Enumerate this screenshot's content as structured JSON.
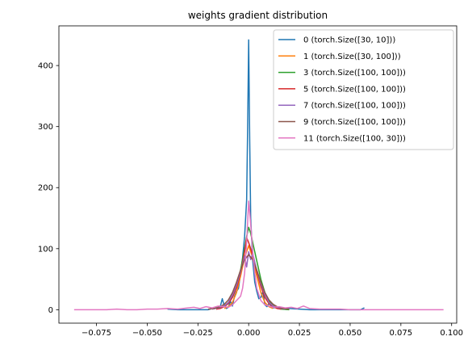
{
  "chart_data": {
    "type": "line",
    "title": "weights gradient distribution",
    "xlabel": "",
    "ylabel": "",
    "xlim": [
      -0.0935,
      0.1025
    ],
    "ylim": [
      -22,
      465
    ],
    "xticks": [
      -0.075,
      -0.05,
      -0.025,
      0.0,
      0.025,
      0.05,
      0.075,
      0.1
    ],
    "xtick_labels": [
      "−0.075",
      "−0.050",
      "−0.025",
      "0.000",
      "0.025",
      "0.050",
      "0.075",
      "0.100"
    ],
    "yticks": [
      0,
      100,
      200,
      300,
      400
    ],
    "ytick_labels": [
      "0",
      "100",
      "200",
      "300",
      "400"
    ],
    "grid": false,
    "legend_position": "top-right",
    "series": [
      {
        "name": "0 (torch.Size([30, 10]))",
        "color": "#1f77b4",
        "x": [
          -0.04,
          -0.035,
          -0.03,
          -0.025,
          -0.02,
          -0.018,
          -0.016,
          -0.014,
          -0.013,
          -0.012,
          -0.011,
          -0.01,
          -0.009,
          -0.008,
          -0.007,
          -0.006,
          -0.005,
          -0.004,
          -0.003,
          -0.002,
          -0.001,
          -0.0005,
          0.0,
          0.0005,
          0.001,
          0.002,
          0.003,
          0.004,
          0.005,
          0.006,
          0.007,
          0.008,
          0.009,
          0.01,
          0.012,
          0.014,
          0.016,
          0.02,
          0.025,
          0.03,
          0.035,
          0.04,
          0.045,
          0.05,
          0.055,
          0.057
        ],
        "y": [
          1,
          0,
          0,
          0,
          0,
          2,
          3,
          5,
          18,
          6,
          2,
          4,
          14,
          6,
          22,
          30,
          35,
          60,
          85,
          120,
          180,
          300,
          442,
          280,
          150,
          80,
          45,
          30,
          18,
          20,
          30,
          8,
          5,
          10,
          3,
          4,
          2,
          2,
          1,
          0,
          0,
          0,
          0,
          0,
          0,
          3
        ]
      },
      {
        "name": "1 (torch.Size([30, 100]))",
        "color": "#ff7f0e",
        "x": [
          -0.012,
          -0.01,
          -0.008,
          -0.006,
          -0.004,
          -0.002,
          0.0,
          0.002,
          0.004,
          0.006,
          0.008,
          0.01,
          0.012
        ],
        "y": [
          2,
          5,
          12,
          28,
          55,
          85,
          105,
          85,
          55,
          28,
          12,
          5,
          2
        ]
      },
      {
        "name": "3 (torch.Size([100, 100]))",
        "color": "#2ca02c",
        "x": [
          -0.016,
          -0.014,
          -0.012,
          -0.01,
          -0.008,
          -0.006,
          -0.004,
          -0.002,
          -0.001,
          0.0,
          0.001,
          0.002,
          0.004,
          0.006,
          0.008,
          0.01,
          0.012,
          0.014,
          0.016,
          0.02
        ],
        "y": [
          1,
          3,
          6,
          12,
          22,
          40,
          65,
          100,
          120,
          135,
          125,
          110,
          80,
          50,
          28,
          14,
          7,
          3,
          1,
          0
        ]
      },
      {
        "name": "5 (torch.Size([100, 100]))",
        "color": "#d62728",
        "x": [
          -0.016,
          -0.014,
          -0.012,
          -0.01,
          -0.008,
          -0.006,
          -0.004,
          -0.002,
          -0.001,
          0.0,
          0.001,
          0.002,
          0.004,
          0.006,
          0.008,
          0.01,
          0.012,
          0.014,
          0.016
        ],
        "y": [
          1,
          2,
          5,
          10,
          20,
          36,
          60,
          95,
          118,
          110,
          100,
          88,
          62,
          38,
          20,
          10,
          5,
          2,
          1
        ]
      },
      {
        "name": "7 (torch.Size([100, 100]))",
        "color": "#9467bd",
        "x": [
          -0.018,
          -0.015,
          -0.012,
          -0.01,
          -0.008,
          -0.006,
          -0.004,
          -0.003,
          -0.002,
          -0.001,
          0.0,
          0.001,
          0.002,
          0.003,
          0.004,
          0.006,
          0.008,
          0.01,
          0.012,
          0.015,
          0.018
        ],
        "y": [
          1,
          3,
          6,
          12,
          24,
          40,
          62,
          75,
          88,
          70,
          95,
          82,
          92,
          78,
          65,
          42,
          25,
          12,
          6,
          3,
          1
        ]
      },
      {
        "name": "9 (torch.Size([100, 100]))",
        "color": "#8c564b",
        "x": [
          -0.02,
          -0.017,
          -0.014,
          -0.012,
          -0.01,
          -0.008,
          -0.006,
          -0.004,
          -0.002,
          0.0,
          0.002,
          0.004,
          0.006,
          0.008,
          0.01,
          0.012,
          0.014,
          0.017,
          0.02
        ],
        "y": [
          1,
          2,
          5,
          9,
          16,
          28,
          45,
          65,
          82,
          90,
          82,
          65,
          45,
          28,
          16,
          9,
          5,
          2,
          1
        ]
      },
      {
        "name": "11 (torch.Size([100, 30]))",
        "color": "#e377c2",
        "x": [
          -0.086,
          -0.08,
          -0.075,
          -0.07,
          -0.065,
          -0.06,
          -0.055,
          -0.05,
          -0.045,
          -0.04,
          -0.035,
          -0.03,
          -0.027,
          -0.024,
          -0.021,
          -0.018,
          -0.015,
          -0.012,
          -0.01,
          -0.008,
          -0.006,
          -0.004,
          -0.003,
          -0.002,
          -0.001,
          0.0,
          0.001,
          0.002,
          0.003,
          0.004,
          0.006,
          0.008,
          0.01,
          0.012,
          0.015,
          0.018,
          0.021,
          0.024,
          0.027,
          0.03,
          0.035,
          0.04,
          0.045,
          0.05,
          0.055,
          0.06,
          0.065,
          0.07,
          0.075,
          0.08,
          0.085,
          0.09,
          0.096
        ],
        "y": [
          0,
          0,
          0,
          0,
          1,
          0,
          0,
          1,
          1,
          2,
          1,
          3,
          4,
          2,
          5,
          3,
          6,
          5,
          4,
          8,
          15,
          22,
          35,
          60,
          110,
          178,
          140,
          95,
          60,
          35,
          15,
          8,
          6,
          4,
          5,
          3,
          4,
          2,
          6,
          2,
          1,
          1,
          1,
          0,
          0,
          0,
          0,
          0,
          0,
          0,
          0,
          0,
          0
        ]
      }
    ]
  }
}
